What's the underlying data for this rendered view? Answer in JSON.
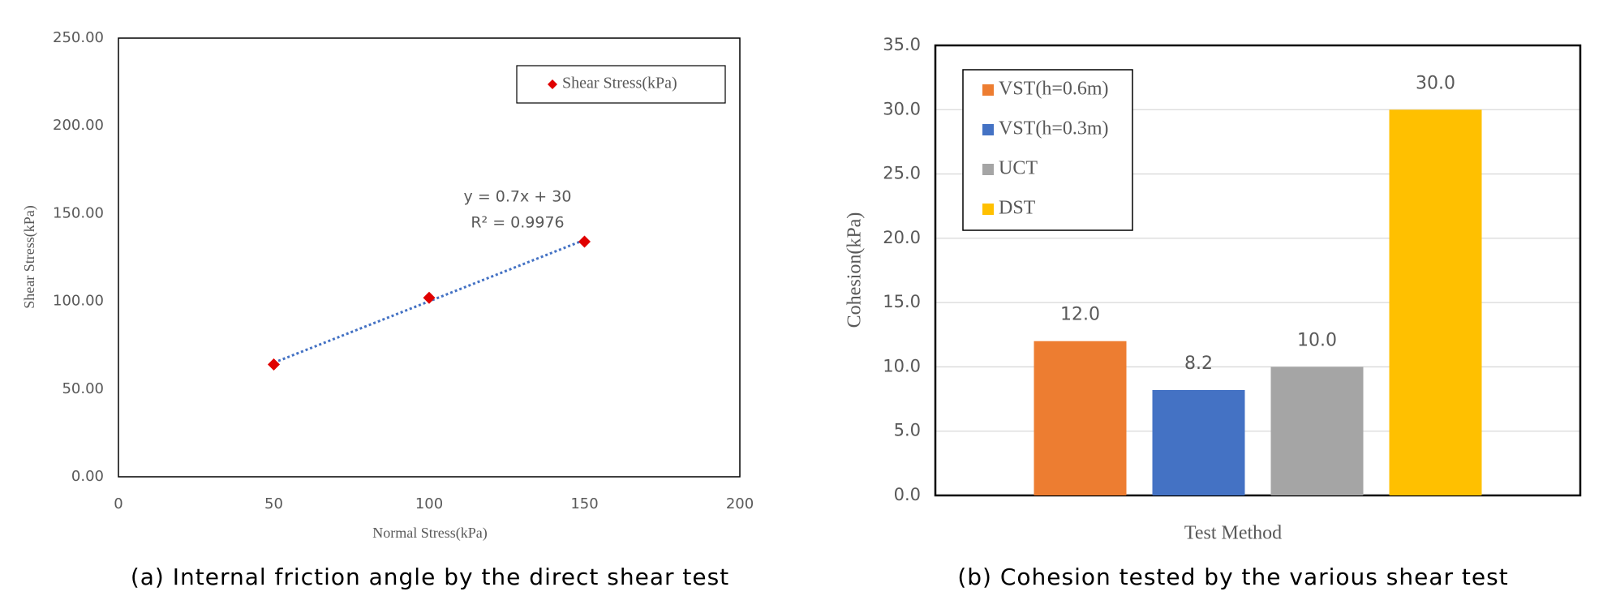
{
  "chart_data": [
    {
      "type": "scatter",
      "caption": "(a) Internal friction angle by the direct shear test",
      "x_label": "Normal Stress(kPa)",
      "y_label": "Shear Stress(kPa)",
      "series": [
        {
          "name": "Shear Stress(kPa)",
          "color": "#e00000",
          "x": [
            50,
            100,
            150
          ],
          "values": [
            64,
            102,
            134
          ]
        }
      ],
      "trendline_equation": "y = 0.7x + 30",
      "trendline_r2": "R² = 0.9976",
      "trendline_color": "#4472c4",
      "xlim": [
        0,
        200
      ],
      "xticks": [
        0,
        50,
        100,
        150,
        200
      ],
      "ylim": [
        0,
        250
      ],
      "yticks": [
        {
          "value": 0,
          "label": "0.00"
        },
        {
          "value": 50,
          "label": "50.00"
        },
        {
          "value": 100,
          "label": "100.00"
        },
        {
          "value": 150,
          "label": "150.00"
        },
        {
          "value": 200,
          "label": "200.00"
        },
        {
          "value": 250,
          "label": "250.00"
        }
      ],
      "grid": false,
      "legend": "upper right"
    },
    {
      "type": "bar",
      "caption": "(b) Cohesion tested by the various shear test",
      "x_label": "Test Method",
      "y_label": "Cohesion(kPa)",
      "series": [
        {
          "name": "VST(h=0.6m)",
          "color": "#ed7d31",
          "values": [
            12.0
          ],
          "value_labels": [
            "12.0"
          ]
        },
        {
          "name": "VST(h=0.3m)",
          "color": "#4472c4",
          "values": [
            8.2
          ],
          "value_labels": [
            "8.2"
          ]
        },
        {
          "name": "UCT",
          "color": "#a5a5a5",
          "values": [
            10.0
          ],
          "value_labels": [
            "10.0"
          ]
        },
        {
          "name": "DST",
          "color": "#ffc000",
          "values": [
            30.0
          ],
          "value_labels": [
            "30.0"
          ]
        }
      ],
      "ylim": [
        0,
        35
      ],
      "yticks": [
        {
          "value": 0,
          "label": "0.0"
        },
        {
          "value": 5,
          "label": "5.0"
        },
        {
          "value": 10,
          "label": "10.0"
        },
        {
          "value": 15,
          "label": "15.0"
        },
        {
          "value": 20,
          "label": "20.0"
        },
        {
          "value": 25,
          "label": "25.0"
        },
        {
          "value": 30,
          "label": "30.0"
        },
        {
          "value": 35,
          "label": "35.0"
        }
      ],
      "grid": true,
      "legend": "upper left"
    }
  ]
}
